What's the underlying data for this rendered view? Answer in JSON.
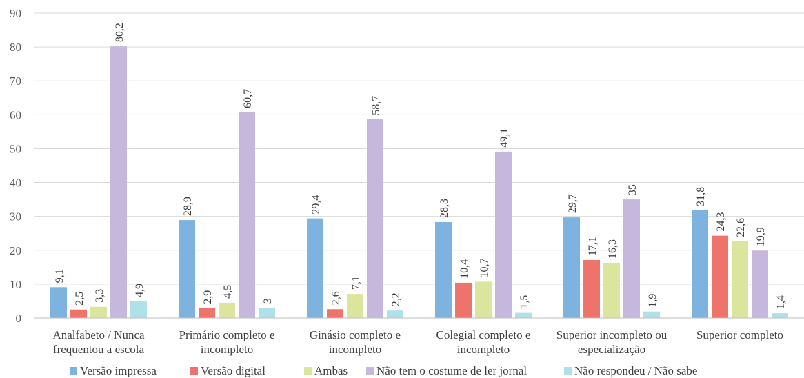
{
  "chart_data": {
    "type": "bar",
    "title": "",
    "xlabel": "",
    "ylabel": "",
    "ylim": [
      0,
      90
    ],
    "yticks": [
      0,
      10,
      20,
      30,
      40,
      50,
      60,
      70,
      80,
      90
    ],
    "grid": true,
    "legend_position": "bottom",
    "categories": [
      [
        "Analfabeto / Nunca",
        "frequentou a escola"
      ],
      [
        "Primário completo e",
        "incompleto"
      ],
      [
        "Ginásio completo e",
        "incompleto"
      ],
      [
        "Colegial completo e",
        "incompleto"
      ],
      [
        "Superior incompleto ou",
        "especialização"
      ],
      [
        "Superior completo"
      ]
    ],
    "series": [
      {
        "name": "Versão impressa",
        "color": "#7EB3DF",
        "values": [
          9.1,
          28.9,
          29.4,
          28.3,
          29.7,
          31.8
        ],
        "labels": [
          "9,1",
          "28,9",
          "29,4",
          "28,3",
          "29,7",
          "31,8"
        ]
      },
      {
        "name": "Versão digital",
        "color": "#EE736B",
        "values": [
          2.5,
          2.9,
          2.6,
          10.4,
          17.1,
          24.3
        ],
        "labels": [
          "2,5",
          "2,9",
          "2,6",
          "10,4",
          "17,1",
          "24,3"
        ]
      },
      {
        "name": "Ambas",
        "color": "#DBE59E",
        "values": [
          3.3,
          4.5,
          7.1,
          10.7,
          16.3,
          22.6
        ],
        "labels": [
          "3,3",
          "4,5",
          "7,1",
          "10,7",
          "16,3",
          "22,6"
        ]
      },
      {
        "name": "Não tem o costume de ler jornal",
        "color": "#C6B8DD",
        "values": [
          80.2,
          60.7,
          58.7,
          49.1,
          35,
          19.9
        ],
        "labels": [
          "80,2",
          "60,7",
          "58,7",
          "49,1",
          "35",
          "19,9"
        ]
      },
      {
        "name": "Não respondeu / Não sabe",
        "color": "#B0E0EA",
        "values": [
          4.9,
          3,
          2.2,
          1.5,
          1.9,
          1.4
        ],
        "labels": [
          "4,9",
          "3",
          "2,2",
          "1,5",
          "1,9",
          "1,4"
        ]
      }
    ]
  }
}
